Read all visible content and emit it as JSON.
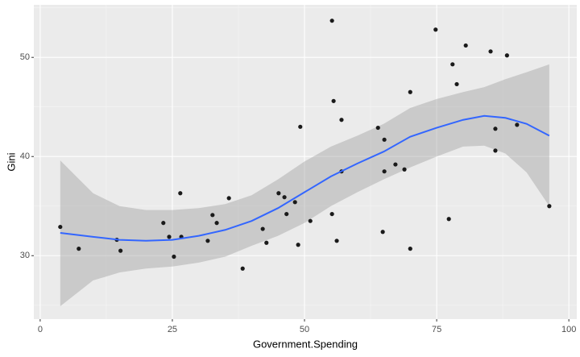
{
  "chart_data": {
    "type": "scatter",
    "x_label": "Government.Spending",
    "y_label": "Gini",
    "xlim": [
      -1.2,
      101.5
    ],
    "ylim": [
      23.6,
      55.3
    ],
    "xticks": [
      0,
      25,
      50,
      75,
      100
    ],
    "yticks": [
      30,
      40,
      50
    ],
    "grid": true,
    "series": [
      {
        "color": "#1a1a1a",
        "x": [
          3.8,
          7.3,
          14.5,
          15.2,
          23.3,
          24.4,
          25.3,
          26.5,
          26.7,
          31.7,
          32.6,
          33.4,
          35.7,
          38.3,
          42.1,
          42.8,
          45.1,
          46.2,
          46.6,
          48.2,
          48.8,
          49.2,
          51.1,
          55.2,
          55.2,
          55.5,
          56.1,
          57.0,
          57.0,
          63.9,
          64.8,
          65.1,
          65.1,
          67.2,
          68.9,
          70.0,
          70.0,
          74.8,
          77.3,
          78.0,
          78.8,
          80.5,
          85.2,
          86.1,
          86.1,
          88.3,
          90.2,
          96.3
        ],
        "values": [
          32.9,
          30.7,
          31.6,
          30.5,
          33.3,
          31.9,
          29.9,
          36.3,
          31.9,
          31.5,
          34.1,
          33.3,
          35.8,
          28.7,
          32.7,
          31.3,
          36.3,
          35.9,
          34.2,
          35.4,
          31.1,
          43.0,
          33.5,
          53.7,
          34.2,
          45.6,
          31.5,
          43.7,
          38.5,
          42.9,
          32.4,
          41.7,
          38.5,
          39.2,
          38.7,
          46.5,
          30.7,
          52.8,
          33.7,
          49.3,
          47.3,
          51.2,
          50.6,
          42.8,
          40.6,
          50.2,
          43.2,
          35.0
        ]
      }
    ],
    "smooth": {
      "color": "#3366ff",
      "band_color": "#999999",
      "x": [
        3.8,
        10,
        15,
        20,
        25,
        30,
        35,
        40,
        45,
        50,
        55,
        60,
        65,
        70,
        75,
        80,
        84,
        88,
        92,
        96.3
      ],
      "values": [
        32.3,
        31.9,
        31.6,
        31.5,
        31.6,
        32.0,
        32.6,
        33.5,
        34.8,
        36.4,
        38.0,
        39.3,
        40.5,
        42.0,
        42.9,
        43.7,
        44.1,
        43.9,
        43.3,
        42.1
      ],
      "upper": [
        39.6,
        36.3,
        35.0,
        34.6,
        34.6,
        34.8,
        35.2,
        36.1,
        37.7,
        39.5,
        41.0,
        42.1,
        43.3,
        44.9,
        45.8,
        46.5,
        47.0,
        47.8,
        48.5,
        49.3
      ],
      "lower": [
        24.9,
        27.5,
        28.3,
        28.7,
        28.9,
        29.3,
        29.9,
        31.0,
        32.0,
        33.3,
        35.0,
        36.4,
        37.7,
        38.9,
        40.0,
        41.0,
        41.1,
        40.3,
        38.4,
        35.0
      ]
    }
  }
}
